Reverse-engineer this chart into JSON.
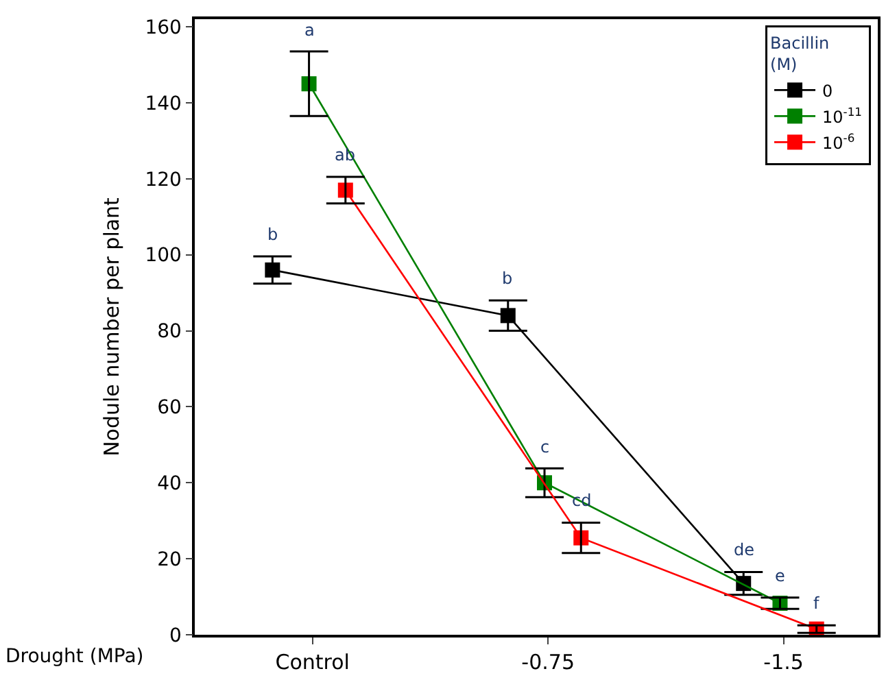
{
  "chart_data": {
    "type": "line",
    "xlabel": "Drought (MPa)",
    "ylabel": "Nodule number per plant",
    "legend_title": "Bacillin\n(M)",
    "categories": [
      "Control",
      "-0.75",
      "-1.5"
    ],
    "ylim": [
      0,
      162
    ],
    "yticks": [
      0,
      20,
      40,
      60,
      80,
      100,
      120,
      140,
      160
    ],
    "series": [
      {
        "name": "0",
        "color": "#000000",
        "values": [
          96,
          84,
          13.5
        ],
        "errors": [
          3.6,
          4,
          3
        ]
      },
      {
        "name": "10$^{-11}$",
        "color": "#008000",
        "values": [
          145,
          40,
          8.3
        ],
        "errors": [
          8.5,
          3.8,
          1.5
        ]
      },
      {
        "name": "10$^{-6}$",
        "color": "#ff0000",
        "values": [
          117,
          25.5,
          1.5
        ],
        "errors": [
          3.5,
          4,
          1
        ]
      }
    ],
    "annotations": [
      "b",
      "a",
      "ab",
      "b",
      "c",
      "cd",
      "de",
      "e",
      "f"
    ],
    "marker": "square",
    "line_style": "solid",
    "legend": "top right"
  }
}
